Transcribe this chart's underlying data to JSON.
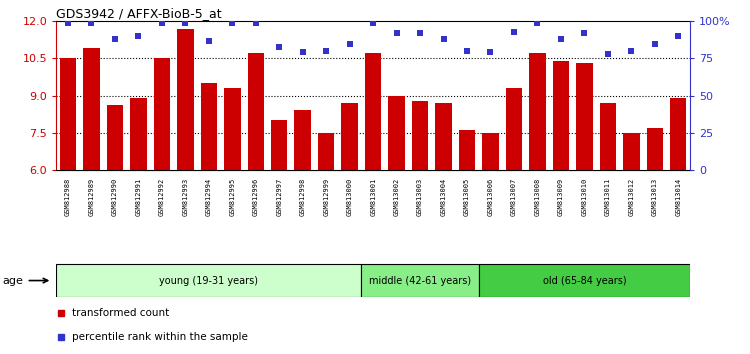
{
  "title": "GDS3942 / AFFX-BioB-5_at",
  "samples": [
    "GSM812988",
    "GSM812989",
    "GSM812990",
    "GSM812991",
    "GSM812992",
    "GSM812993",
    "GSM812994",
    "GSM812995",
    "GSM812996",
    "GSM812997",
    "GSM812998",
    "GSM812999",
    "GSM813000",
    "GSM813001",
    "GSM813002",
    "GSM813003",
    "GSM813004",
    "GSM813005",
    "GSM813006",
    "GSM813007",
    "GSM813008",
    "GSM813009",
    "GSM813010",
    "GSM813011",
    "GSM813012",
    "GSM813013",
    "GSM813014"
  ],
  "bar_values": [
    10.5,
    10.9,
    8.6,
    8.9,
    10.5,
    11.7,
    9.5,
    9.3,
    10.7,
    8.0,
    8.4,
    7.5,
    8.7,
    10.7,
    9.0,
    8.8,
    8.7,
    7.6,
    7.5,
    9.3,
    10.7,
    10.4,
    10.3,
    8.7,
    7.5,
    7.7,
    8.9
  ],
  "percentile_values": [
    99,
    99,
    88,
    90,
    99,
    99,
    87,
    99,
    99,
    83,
    79,
    80,
    85,
    99,
    92,
    92,
    88,
    80,
    79,
    93,
    99,
    88,
    92,
    78,
    80,
    85,
    90
  ],
  "bar_color": "#cc0000",
  "dot_color": "#3333cc",
  "ylim_left": [
    6,
    12
  ],
  "ylim_right": [
    0,
    100
  ],
  "yticks_left": [
    6,
    7.5,
    9,
    10.5,
    12
  ],
  "yticks_right": [
    0,
    25,
    50,
    75,
    100
  ],
  "ytick_labels_right": [
    "0",
    "25",
    "50",
    "75",
    "100%"
  ],
  "groups": [
    {
      "label": "young (19-31 years)",
      "start": 0,
      "end": 13,
      "color": "#ccffcc"
    },
    {
      "label": "middle (42-61 years)",
      "start": 13,
      "end": 18,
      "color": "#88ee88"
    },
    {
      "label": "old (65-84 years)",
      "start": 18,
      "end": 27,
      "color": "#44cc44"
    }
  ],
  "age_label": "age",
  "legend_line1": "transformed count",
  "legend_line2": "percentile rank within the sample",
  "dotted_lines": [
    7.5,
    9.0,
    10.5
  ],
  "tick_color_left": "#cc0000",
  "tick_color_right": "#3333cc",
  "xticklabel_bg": "#cccccc",
  "bar_width": 0.7
}
